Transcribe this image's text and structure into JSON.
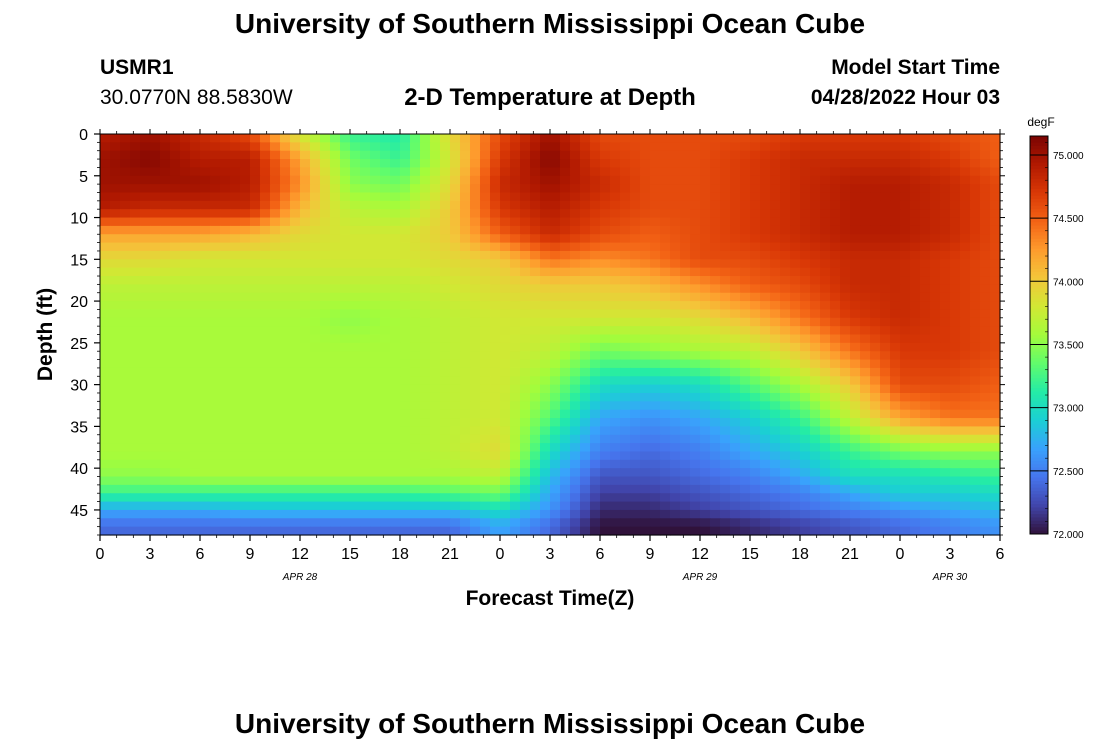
{
  "page": {
    "title": "University of Southern Mississippi Ocean Cube",
    "bottom_title": "University of Southern Mississippi Ocean Cube",
    "station_id": "USMR1",
    "coords": "30.0770N  88.5830W",
    "chart_heading": "2-D Temperature at Depth",
    "model_start_label": "Model Start Time",
    "model_start_value": "04/28/2022 Hour 03"
  },
  "chart_data": {
    "type": "heatmap",
    "title": "2-D Temperature at Depth",
    "xlabel": "Forecast Time(Z)",
    "ylabel": "Depth (ft)",
    "colorbar_label": "degF",
    "x_ticks": [
      "0",
      "3",
      "6",
      "9",
      "12",
      "15",
      "18",
      "21",
      "0",
      "3",
      "6",
      "9",
      "12",
      "15",
      "18",
      "21",
      "0",
      "3",
      "6"
    ],
    "date_labels": [
      {
        "text": "APR 28",
        "tick_index": 4
      },
      {
        "text": "APR 29",
        "tick_index": 12
      },
      {
        "text": "APR 30",
        "tick_index": 17
      }
    ],
    "x_range_hours": [
      0,
      54
    ],
    "y_ticks": [
      0,
      5,
      10,
      15,
      20,
      25,
      30,
      35,
      40,
      45
    ],
    "y_range": [
      0,
      48
    ],
    "color_range": [
      72.0,
      75.15
    ],
    "colorbar_ticks": [
      "72.000",
      "72.500",
      "73.000",
      "73.500",
      "74.000",
      "74.500",
      "75.000"
    ],
    "colorbar_tick_values": [
      72.0,
      72.5,
      73.0,
      73.5,
      74.0,
      74.5,
      75.0
    ],
    "depths": [
      0,
      3,
      6,
      9,
      12,
      15,
      18,
      22,
      26,
      30,
      34,
      38,
      41,
      43,
      45,
      47
    ],
    "hours": [
      0,
      3,
      6,
      9,
      12,
      15,
      18,
      21,
      24,
      27,
      30,
      33,
      36,
      39,
      42,
      45,
      48,
      51,
      54
    ],
    "temperature_degF": [
      [
        74.9,
        75.0,
        74.8,
        74.6,
        73.8,
        73.2,
        73.1,
        73.9,
        74.6,
        75.0,
        74.6,
        74.6,
        74.6,
        74.6,
        74.7,
        74.7,
        74.7,
        74.6,
        74.5
      ],
      [
        75.0,
        75.1,
        74.9,
        74.9,
        74.2,
        73.4,
        73.2,
        73.8,
        74.7,
        75.1,
        74.7,
        74.6,
        74.6,
        74.7,
        74.8,
        74.8,
        74.8,
        74.7,
        74.5
      ],
      [
        75.0,
        75.0,
        75.0,
        74.9,
        74.3,
        73.5,
        73.4,
        73.9,
        74.8,
        75.0,
        74.8,
        74.6,
        74.6,
        74.7,
        74.8,
        74.9,
        74.9,
        74.8,
        74.6
      ],
      [
        74.9,
        74.8,
        74.8,
        74.8,
        74.1,
        73.7,
        73.6,
        74.0,
        74.7,
        74.9,
        74.7,
        74.6,
        74.6,
        74.7,
        74.8,
        74.9,
        74.9,
        74.8,
        74.6
      ],
      [
        74.2,
        74.2,
        74.2,
        74.1,
        73.9,
        73.8,
        73.8,
        74.0,
        74.5,
        74.8,
        74.6,
        74.5,
        74.6,
        74.7,
        74.8,
        74.9,
        74.9,
        74.8,
        74.6
      ],
      [
        73.9,
        73.9,
        73.8,
        73.8,
        73.8,
        73.8,
        73.8,
        73.9,
        74.0,
        74.4,
        74.3,
        74.4,
        74.6,
        74.6,
        74.7,
        74.8,
        74.8,
        74.7,
        74.6
      ],
      [
        73.7,
        73.7,
        73.7,
        73.7,
        73.7,
        73.7,
        73.7,
        73.8,
        73.9,
        74.0,
        74.0,
        74.1,
        74.3,
        74.5,
        74.6,
        74.8,
        74.8,
        74.7,
        74.6
      ],
      [
        73.6,
        73.6,
        73.6,
        73.6,
        73.6,
        73.5,
        73.6,
        73.7,
        73.8,
        73.8,
        73.8,
        73.8,
        73.9,
        74.1,
        74.4,
        74.7,
        74.8,
        74.7,
        74.6
      ],
      [
        73.6,
        73.6,
        73.6,
        73.6,
        73.6,
        73.6,
        73.6,
        73.7,
        73.8,
        73.7,
        73.4,
        73.5,
        73.6,
        73.7,
        74.0,
        74.4,
        74.7,
        74.7,
        74.6
      ],
      [
        73.6,
        73.6,
        73.6,
        73.6,
        73.6,
        73.6,
        73.6,
        73.7,
        73.8,
        73.5,
        73.0,
        72.9,
        73.0,
        73.3,
        73.6,
        74.0,
        74.6,
        74.6,
        74.5
      ],
      [
        73.6,
        73.6,
        73.6,
        73.6,
        73.6,
        73.6,
        73.6,
        73.7,
        73.8,
        73.3,
        72.7,
        72.6,
        72.7,
        72.9,
        73.2,
        73.7,
        74.2,
        74.4,
        74.4
      ],
      [
        73.6,
        73.6,
        73.6,
        73.6,
        73.6,
        73.6,
        73.6,
        73.7,
        73.9,
        73.0,
        72.5,
        72.4,
        72.5,
        72.7,
        72.9,
        73.2,
        73.4,
        73.5,
        73.5
      ],
      [
        73.5,
        73.5,
        73.6,
        73.6,
        73.6,
        73.6,
        73.6,
        73.6,
        73.7,
        72.8,
        72.3,
        72.3,
        72.4,
        72.5,
        72.7,
        73.0,
        73.0,
        73.1,
        73.2
      ],
      [
        73.2,
        73.2,
        73.2,
        73.2,
        73.2,
        73.2,
        73.2,
        73.3,
        73.4,
        72.7,
        72.2,
        72.2,
        72.3,
        72.4,
        72.5,
        72.7,
        72.9,
        72.9,
        73.0
      ],
      [
        72.7,
        72.7,
        72.7,
        72.8,
        72.8,
        72.8,
        72.8,
        72.8,
        73.0,
        72.6,
        72.1,
        72.1,
        72.2,
        72.3,
        72.4,
        72.5,
        72.6,
        72.7,
        72.8
      ],
      [
        72.4,
        72.4,
        72.4,
        72.4,
        72.4,
        72.4,
        72.4,
        72.4,
        72.7,
        72.4,
        72.0,
        72.0,
        72.0,
        72.1,
        72.2,
        72.3,
        72.4,
        72.5,
        72.6
      ]
    ],
    "colormap": [
      "#30123b",
      "#4145ab",
      "#4675ed",
      "#39a2fc",
      "#1bcfd4",
      "#24eca6",
      "#61fc6c",
      "#a4fc3b",
      "#d1e834",
      "#f3c63a",
      "#fe9b2d",
      "#f36315",
      "#d93806",
      "#b11901",
      "#7a0402"
    ]
  }
}
